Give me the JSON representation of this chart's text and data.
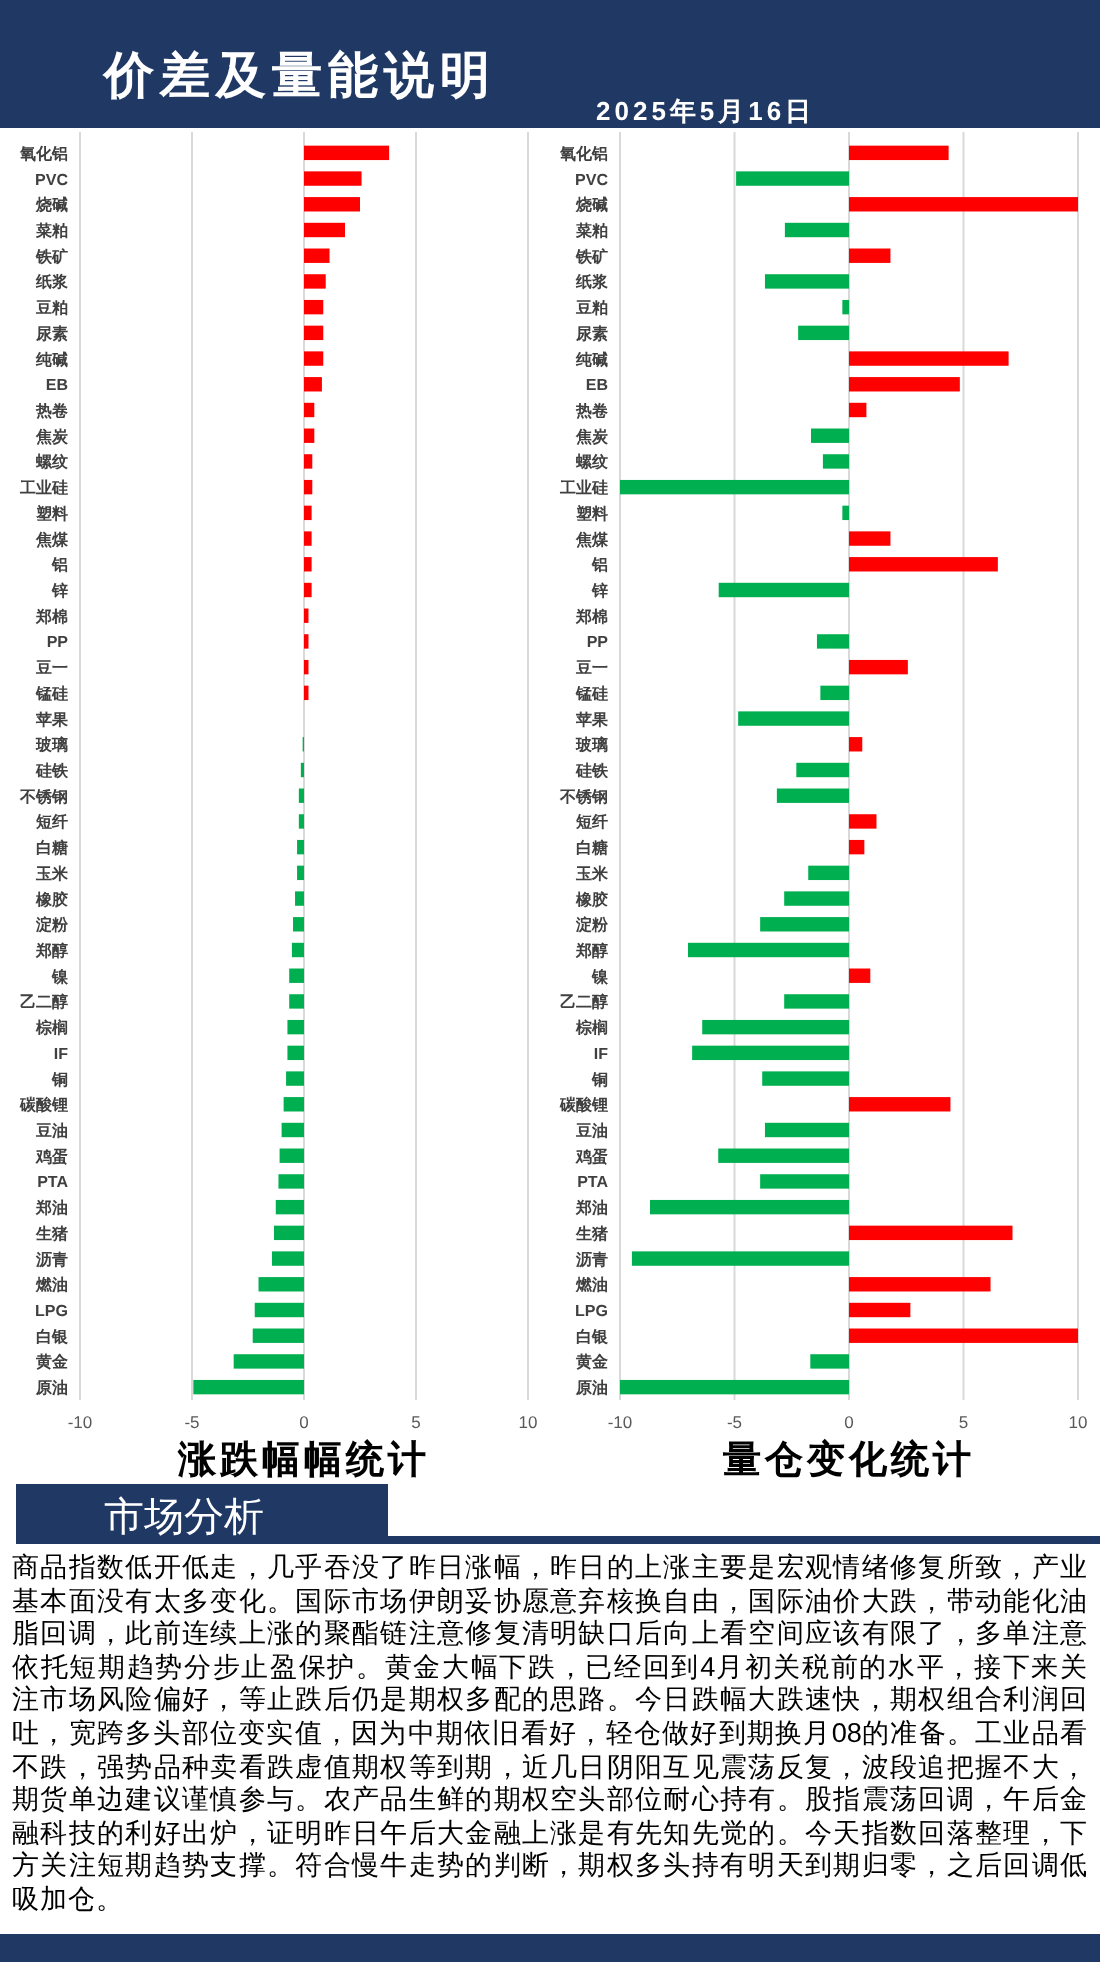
{
  "chart_data": [
    {
      "type": "other",
      "title": "价差及量能说明",
      "subtitle": "2025年5月16日"
    },
    {
      "type": "bar",
      "orientation": "horizontal",
      "title": "涨跌幅幅统计",
      "grid": "x",
      "xlim": [
        -10,
        10
      ],
      "xticks": [
        -10,
        -5,
        0,
        5,
        10
      ],
      "categories": [
        "氧化铝",
        "PVC",
        "烧碱",
        "菜粕",
        "铁矿",
        "纸浆",
        "豆粕",
        "尿素",
        "纯碱",
        "EB",
        "热卷",
        "焦炭",
        "螺纹",
        "工业硅",
        "塑料",
        "焦煤",
        "铝",
        "锌",
        "郑棉",
        "PP",
        "豆一",
        "锰硅",
        "苹果",
        "玻璃",
        "硅铁",
        "不锈钢",
        "短纤",
        "白糖",
        "玉米",
        "橡胶",
        "淀粉",
        "郑醇",
        "镍",
        "乙二醇",
        "棕榈",
        "IF",
        "铜",
        "碳酸锂",
        "豆油",
        "鸡蛋",
        "PTA",
        "郑油",
        "生猪",
        "沥青",
        "燃油",
        "LPG",
        "白银",
        "黄金",
        "原油"
      ],
      "values": [
        3.8,
        2.57,
        2.5,
        1.83,
        1.14,
        0.97,
        0.86,
        0.86,
        0.86,
        0.8,
        0.46,
        0.46,
        0.37,
        0.37,
        0.34,
        0.34,
        0.34,
        0.34,
        0.2,
        0.2,
        0.2,
        0.2,
        0,
        -0.06,
        -0.14,
        -0.23,
        -0.23,
        -0.31,
        -0.31,
        -0.4,
        -0.49,
        -0.54,
        -0.66,
        -0.66,
        -0.74,
        -0.74,
        -0.8,
        -0.91,
        -1.0,
        -1.09,
        -1.14,
        -1.26,
        -1.34,
        -1.43,
        -2.03,
        -2.2,
        -2.29,
        -3.14,
        -4.94
      ],
      "colors": [
        "#ff0000",
        "#ff0000",
        "#ff0000",
        "#ff0000",
        "#ff0000",
        "#ff0000",
        "#ff0000",
        "#ff0000",
        "#ff0000",
        "#ff0000",
        "#ff0000",
        "#ff0000",
        "#ff0000",
        "#ff0000",
        "#ff0000",
        "#ff0000",
        "#ff0000",
        "#ff0000",
        "#ff0000",
        "#ff0000",
        "#ff0000",
        "#ff0000",
        "#00b050",
        "#00b050",
        "#00b050",
        "#00b050",
        "#00b050",
        "#00b050",
        "#00b050",
        "#00b050",
        "#00b050",
        "#00b050",
        "#00b050",
        "#00b050",
        "#00b050",
        "#00b050",
        "#00b050",
        "#00b050",
        "#00b050",
        "#00b050",
        "#00b050",
        "#00b050",
        "#00b050",
        "#00b050",
        "#00b050",
        "#00b050",
        "#00b050",
        "#00b050",
        "#00b050"
      ]
    },
    {
      "type": "bar",
      "orientation": "horizontal",
      "title": "量仓变化统计",
      "grid": "x",
      "xlim": [
        -10,
        10
      ],
      "xticks": [
        -10,
        -5,
        0,
        5,
        10
      ],
      "categories": [
        "氧化铝",
        "PVC",
        "烧碱",
        "菜粕",
        "铁矿",
        "纸浆",
        "豆粕",
        "尿素",
        "纯碱",
        "EB",
        "热卷",
        "焦炭",
        "螺纹",
        "工业硅",
        "塑料",
        "焦煤",
        "铝",
        "锌",
        "郑棉",
        "PP",
        "豆一",
        "锰硅",
        "苹果",
        "玻璃",
        "硅铁",
        "不锈钢",
        "短纤",
        "白糖",
        "玉米",
        "橡胶",
        "淀粉",
        "郑醇",
        "镍",
        "乙二醇",
        "棕榈",
        "IF",
        "铜",
        "碳酸锂",
        "豆油",
        "鸡蛋",
        "PTA",
        "郑油",
        "生猪",
        "沥青",
        "燃油",
        "LPG",
        "白银",
        "黄金",
        "原油"
      ],
      "values": [
        4.35,
        -4.93,
        10,
        -2.8,
        1.81,
        -3.67,
        -0.29,
        -2.22,
        6.97,
        4.84,
        0.76,
        -1.66,
        -1.14,
        -10,
        -0.29,
        1.81,
        6.5,
        -5.69,
        0,
        -1.4,
        2.57,
        -1.25,
        -4.84,
        0.58,
        -2.3,
        -3.15,
        1.2,
        0.67,
        -1.78,
        -2.83,
        -3.88,
        -7.03,
        0.93,
        -2.83,
        -6.41,
        -6.85,
        -3.79,
        4.43,
        -3.67,
        -5.71,
        -3.88,
        -8.69,
        7.14,
        -9.48,
        6.18,
        2.68,
        10,
        -1.69,
        -10
      ],
      "colors": [
        "#ff0000",
        "#00b050",
        "#ff0000",
        "#00b050",
        "#ff0000",
        "#00b050",
        "#00b050",
        "#00b050",
        "#ff0000",
        "#ff0000",
        "#ff0000",
        "#00b050",
        "#00b050",
        "#00b050",
        "#00b050",
        "#ff0000",
        "#ff0000",
        "#00b050",
        "#00b050",
        "#00b050",
        "#ff0000",
        "#00b050",
        "#00b050",
        "#ff0000",
        "#00b050",
        "#00b050",
        "#ff0000",
        "#ff0000",
        "#00b050",
        "#00b050",
        "#00b050",
        "#00b050",
        "#ff0000",
        "#00b050",
        "#00b050",
        "#00b050",
        "#00b050",
        "#ff0000",
        "#00b050",
        "#00b050",
        "#00b050",
        "#00b050",
        "#ff0000",
        "#00b050",
        "#ff0000",
        "#ff0000",
        "#ff0000",
        "#00b050",
        "#00b050"
      ]
    },
    {
      "type": "other",
      "title": "市场分析",
      "annotations": [
        "商品指数低开低走，几乎吞没了昨日涨幅，昨日的上涨主要是宏观情绪修复所致，产业基本面没有太多变化。国际市场伊朗妥协愿意弃核换自由，国际油价大跌，带动能化油脂回调，此前连续上涨的聚酯链注意修复清明缺口后向上看空间应该有限了，多单注意依托短期趋势分步止盈保护。黄金大幅下跌，已经回到4月初关税前的水平，接下来关注市场风险偏好，等止跌后仍是期权多配的思路。今日跌幅大跌速快，期权组合利润回吐，宽跨多头部位变实值，因为中期依旧看好，轻仓做好到期换月08的准备。工业品看不跌，强势品种卖看跌虚值期权等到期，近几日阴阳互见震荡反复，波段追把握不大，期货单边建议谨慎参与。农产品生鲜的期权空头部位耐心持有。股指震荡回调，午后金融科技的利好出炉，证明昨日午后大金融上涨是有先知先觉的。今天指数回落整理，下方关注短期趋势支撑。符合慢牛走势的判断，期权多头持有明天到期归零，之后回调低吸加仓。"
      ]
    }
  ]
}
